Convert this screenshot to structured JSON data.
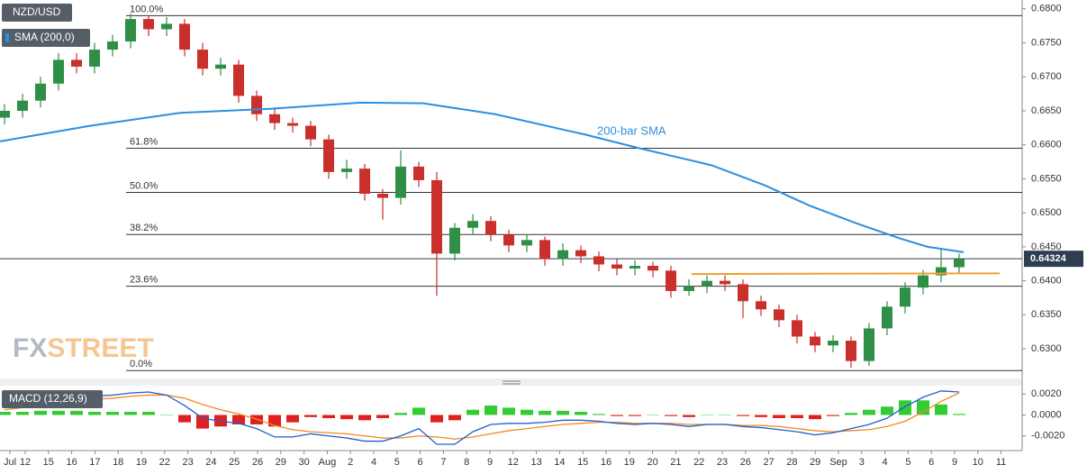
{
  "chart_data": [
    {
      "type": "candlestick",
      "title": "NZD/USD",
      "indicator_label": "SMA (200,0)",
      "x": [
        0,
        1,
        2,
        3,
        4,
        5,
        6,
        7,
        8,
        9,
        10,
        11,
        12,
        13,
        14,
        15,
        16,
        17,
        18,
        19,
        20,
        21,
        22,
        23,
        24,
        25,
        26,
        27,
        28,
        29,
        30,
        31,
        32,
        33,
        34,
        35,
        36,
        37,
        38,
        39,
        40,
        41,
        42,
        43,
        44,
        45,
        46,
        47,
        48,
        49,
        50,
        51,
        52,
        53
      ],
      "open": [
        0.664,
        0.665,
        0.6665,
        0.669,
        0.6725,
        0.6715,
        0.674,
        0.6752,
        0.6785,
        0.677,
        0.6778,
        0.674,
        0.6712,
        0.6718,
        0.6672,
        0.6645,
        0.6632,
        0.6628,
        0.6608,
        0.656,
        0.6565,
        0.6528,
        0.6522,
        0.6568,
        0.6548,
        0.644,
        0.6478,
        0.6488,
        0.6468,
        0.6452,
        0.646,
        0.6432,
        0.6445,
        0.6436,
        0.6424,
        0.6418,
        0.6422,
        0.6415,
        0.6385,
        0.6392,
        0.64,
        0.6395,
        0.637,
        0.6358,
        0.6342,
        0.6318,
        0.6305,
        0.6312,
        0.6282,
        0.633,
        0.6362,
        0.639,
        0.6408,
        0.642
      ],
      "high": [
        0.666,
        0.6675,
        0.67,
        0.6735,
        0.6735,
        0.675,
        0.6762,
        0.6793,
        0.679,
        0.6788,
        0.6785,
        0.675,
        0.6728,
        0.6725,
        0.668,
        0.6655,
        0.664,
        0.6635,
        0.6615,
        0.6578,
        0.6572,
        0.6535,
        0.6592,
        0.6575,
        0.656,
        0.6485,
        0.6498,
        0.6495,
        0.6475,
        0.6468,
        0.6465,
        0.6455,
        0.6452,
        0.6443,
        0.6432,
        0.643,
        0.6428,
        0.6422,
        0.6402,
        0.6408,
        0.6408,
        0.6402,
        0.6378,
        0.6365,
        0.635,
        0.6325,
        0.632,
        0.6318,
        0.6338,
        0.637,
        0.6398,
        0.6416,
        0.6446,
        0.644
      ],
      "low": [
        0.663,
        0.664,
        0.6655,
        0.668,
        0.6705,
        0.6705,
        0.673,
        0.6742,
        0.676,
        0.676,
        0.673,
        0.6702,
        0.6702,
        0.6662,
        0.6635,
        0.6622,
        0.6618,
        0.6598,
        0.655,
        0.655,
        0.6518,
        0.649,
        0.6512,
        0.6538,
        0.6378,
        0.643,
        0.6468,
        0.6458,
        0.6442,
        0.6442,
        0.6422,
        0.6422,
        0.6426,
        0.6414,
        0.6408,
        0.6408,
        0.6405,
        0.6375,
        0.6378,
        0.6382,
        0.6385,
        0.6345,
        0.6348,
        0.6332,
        0.6308,
        0.6295,
        0.6295,
        0.6272,
        0.6275,
        0.632,
        0.6352,
        0.638,
        0.6398,
        0.641
      ],
      "close": [
        0.665,
        0.6665,
        0.669,
        0.6725,
        0.6715,
        0.674,
        0.6752,
        0.6785,
        0.677,
        0.6778,
        0.674,
        0.6712,
        0.6718,
        0.6672,
        0.6645,
        0.6632,
        0.6628,
        0.6608,
        0.656,
        0.6565,
        0.6528,
        0.6522,
        0.6568,
        0.6548,
        0.644,
        0.6478,
        0.6488,
        0.6468,
        0.6452,
        0.646,
        0.6432,
        0.6445,
        0.6436,
        0.6424,
        0.6418,
        0.6422,
        0.6415,
        0.6385,
        0.6392,
        0.64,
        0.6395,
        0.637,
        0.6358,
        0.6342,
        0.6318,
        0.6305,
        0.6312,
        0.6282,
        0.633,
        0.6362,
        0.639,
        0.6408,
        0.642,
        0.6432
      ],
      "up_color": "#2f8f46",
      "down_color": "#c9302c",
      "sma": {
        "label": "200-bar SMA",
        "color": "#2b8fe0",
        "x": [
          -0.25,
          4.75,
          9.75,
          14.75,
          19.75,
          23.25,
          27.25,
          32.25,
          35.25,
          39.25,
          42.25,
          44.75,
          47.25,
          49.75,
          51.25,
          53.25
        ],
        "values": [
          0.6605,
          0.6628,
          0.6647,
          0.6653,
          0.6662,
          0.6661,
          0.6645,
          0.6615,
          0.6595,
          0.657,
          0.654,
          0.651,
          0.6485,
          0.6462,
          0.645,
          0.6442
        ]
      },
      "fib_levels": [
        {
          "value": 0.679,
          "label": "100.0%"
        },
        {
          "value": 0.6595,
          "label": "61.8%"
        },
        {
          "value": 0.653,
          "label": "50.0%"
        },
        {
          "value": 0.6468,
          "label": "38.2%"
        },
        {
          "value": 0.6392,
          "label": "23.6%"
        },
        {
          "value": 0.6268,
          "label": "0.0%"
        }
      ],
      "support_line": {
        "x": [
          38.15,
          55.25
        ],
        "values": [
          0.641,
          0.6411
        ],
        "color": "#f0a030"
      },
      "last_price": 0.64324,
      "watermark": [
        "FX",
        "STREET"
      ],
      "xlim": [
        -0.25,
        56.5
      ],
      "ylim": [
        0.6259,
        0.6813
      ],
      "yticks": [
        {
          "value": 0.68,
          "label": "0.6800"
        },
        {
          "value": 0.675,
          "label": "0.6750"
        },
        {
          "value": 0.67,
          "label": "0.6700"
        },
        {
          "value": 0.665,
          "label": "0.6650"
        },
        {
          "value": 0.66,
          "label": "0.6600"
        },
        {
          "value": 0.655,
          "label": "0.6550"
        },
        {
          "value": 0.65,
          "label": "0.6500"
        },
        {
          "value": 0.645,
          "label": "0.6450"
        },
        {
          "value": 0.64,
          "label": "0.6400"
        },
        {
          "value": 0.635,
          "label": "0.6350"
        },
        {
          "value": 0.63,
          "label": "0.6300"
        }
      ],
      "xticks": [
        {
          "value": 0.3,
          "label": "Jul"
        },
        {
          "value": 1.15,
          "label": "12"
        },
        {
          "value": 2.44,
          "label": "15"
        },
        {
          "value": 3.73,
          "label": "16"
        },
        {
          "value": 5.02,
          "label": "17"
        },
        {
          "value": 6.31,
          "label": "18"
        },
        {
          "value": 7.6,
          "label": "19"
        },
        {
          "value": 8.89,
          "label": "22"
        },
        {
          "value": 10.18,
          "label": "23"
        },
        {
          "value": 11.47,
          "label": "24"
        },
        {
          "value": 12.76,
          "label": "25"
        },
        {
          "value": 14.05,
          "label": "26"
        },
        {
          "value": 15.34,
          "label": "29"
        },
        {
          "value": 16.63,
          "label": "30"
        },
        {
          "value": 17.92,
          "label": "Aug"
        },
        {
          "value": 19.21,
          "label": "2"
        },
        {
          "value": 20.5,
          "label": "4"
        },
        {
          "value": 21.79,
          "label": "5"
        },
        {
          "value": 23.08,
          "label": "6"
        },
        {
          "value": 24.37,
          "label": "7"
        },
        {
          "value": 25.66,
          "label": "8"
        },
        {
          "value": 26.95,
          "label": "9"
        },
        {
          "value": 28.24,
          "label": "12"
        },
        {
          "value": 29.53,
          "label": "13"
        },
        {
          "value": 30.82,
          "label": "14"
        },
        {
          "value": 32.11,
          "label": "15"
        },
        {
          "value": 33.4,
          "label": "16"
        },
        {
          "value": 34.69,
          "label": "19"
        },
        {
          "value": 35.98,
          "label": "20"
        },
        {
          "value": 37.27,
          "label": "21"
        },
        {
          "value": 38.56,
          "label": "22"
        },
        {
          "value": 39.85,
          "label": "23"
        },
        {
          "value": 41.14,
          "label": "26"
        },
        {
          "value": 42.43,
          "label": "27"
        },
        {
          "value": 43.72,
          "label": "28"
        },
        {
          "value": 45.01,
          "label": "29"
        },
        {
          "value": 46.3,
          "label": "Sep"
        },
        {
          "value": 47.59,
          "label": "3"
        },
        {
          "value": 48.88,
          "label": "4"
        },
        {
          "value": 50.17,
          "label": "5"
        },
        {
          "value": 51.46,
          "label": "6"
        },
        {
          "value": 52.75,
          "label": "9"
        },
        {
          "value": 54.04,
          "label": "10"
        },
        {
          "value": 55.33,
          "label": "11"
        }
      ]
    },
    {
      "type": "macd",
      "title": "MACD (12,26,9)",
      "macd": {
        "color": "#1f5fd0",
        "values": [
          0.0008,
          0.001,
          0.0013,
          0.0015,
          0.0017,
          0.0018,
          0.0019,
          0.0021,
          0.0022,
          0.0019,
          0.0009,
          -0.0003,
          -0.0006,
          -0.0008,
          -0.0013,
          -0.0021,
          -0.0021,
          -0.0018,
          -0.002,
          -0.0022,
          -0.0025,
          -0.0025,
          -0.002,
          -0.0013,
          -0.0028,
          -0.0028,
          -0.0016,
          -0.0009,
          -0.0008,
          -0.0008,
          -0.0007,
          -0.0005,
          -0.0005,
          -0.0006,
          -0.0008,
          -0.0009,
          -0.0008,
          -0.0009,
          -0.0011,
          -0.0009,
          -0.0009,
          -0.0011,
          -0.0012,
          -0.0014,
          -0.0016,
          -0.0019,
          -0.0017,
          -0.0013,
          -0.0009,
          -0.0003,
          0.0008,
          0.0017,
          0.0023,
          0.0022
        ]
      },
      "signal": {
        "color": "#f08a24",
        "values": [
          0.0005,
          0.0007,
          0.0009,
          0.0011,
          0.0013,
          0.0015,
          0.0016,
          0.0018,
          0.0019,
          0.0019,
          0.0016,
          0.001,
          0.0005,
          0.0001,
          -0.0004,
          -0.001,
          -0.0014,
          -0.0016,
          -0.0017,
          -0.0018,
          -0.002,
          -0.0022,
          -0.0022,
          -0.002,
          -0.0021,
          -0.0023,
          -0.0021,
          -0.0018,
          -0.0015,
          -0.0013,
          -0.0011,
          -0.0009,
          -0.0008,
          -0.0007,
          -0.0007,
          -0.0008,
          -0.0008,
          -0.0008,
          -0.0009,
          -0.0009,
          -0.0009,
          -0.001,
          -0.001,
          -0.0011,
          -0.0013,
          -0.0015,
          -0.0016,
          -0.0015,
          -0.0014,
          -0.0011,
          -0.0006,
          0.0003,
          0.0013,
          0.0021
        ]
      },
      "histogram": {
        "up_color": "#33cc33",
        "down_color": "#e02020",
        "values": [
          0.0003,
          0.0003,
          0.0004,
          0.0004,
          0.0004,
          0.0003,
          0.0003,
          0.0003,
          0.0003,
          0,
          -0.0007,
          -0.0013,
          -0.0011,
          -0.0009,
          -0.0009,
          -0.0011,
          -0.0007,
          -0.0002,
          -0.0003,
          -0.0004,
          -0.0005,
          -0.0003,
          0.0002,
          0.0007,
          -0.0007,
          -0.0005,
          0.0005,
          0.0009,
          0.0007,
          0.0005,
          0.0004,
          0.0004,
          0.0003,
          0.0001,
          -0.0001,
          -0.0001,
          0,
          -0.0001,
          -0.0002,
          0,
          0,
          -0.0001,
          -0.0002,
          -0.0003,
          -0.0003,
          -0.0004,
          -0.0001,
          0.0002,
          0.0005,
          0.0008,
          0.0014,
          0.0014,
          0.001,
          0.0001
        ]
      },
      "ylim": [
        -0.0034,
        0.0028
      ],
      "yticks": [
        {
          "value": 0.002,
          "label": "0.0020"
        },
        {
          "value": 0,
          "label": "0.0000"
        },
        {
          "value": -0.002,
          "label": "-0.0020"
        }
      ]
    }
  ]
}
